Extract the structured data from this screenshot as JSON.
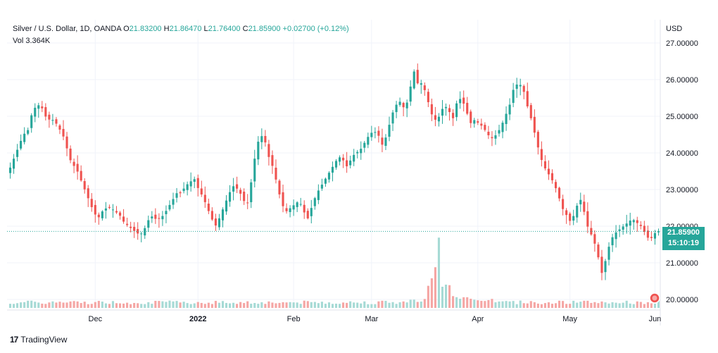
{
  "header": {
    "symbol": "Silver / U.S. Dollar, 1D, OANDA",
    "open_label": "O",
    "open_value": "21.83200",
    "high_label": "H",
    "high_value": "21.86470",
    "low_label": "L",
    "low_value": "21.76400",
    "close_label": "C",
    "close_value": "21.85900",
    "change": "+0.02700 (+0.12%)",
    "vol_label": "Vol",
    "vol_value": "3.364K"
  },
  "currency": "USD",
  "last_price": {
    "price": "21.85900",
    "countdown": "15:10:19"
  },
  "brand": {
    "logo": "17",
    "name": "TradingView"
  },
  "colors": {
    "up": "#26a69a",
    "down": "#ef5350",
    "up_vol": "#a6dad5",
    "down_vol": "#f5a6a4",
    "grid": "#f0f3fa",
    "axis_text": "#131722"
  },
  "chart_data": {
    "type": "candlestick",
    "title": "Silver / U.S. Dollar, 1D, OANDA",
    "ylabel": "USD",
    "ylim": [
      19.9,
      27.2
    ],
    "y_ticks": [
      "27.00000",
      "26.00000",
      "25.00000",
      "24.00000",
      "23.00000",
      "22.00000",
      "21.00000",
      "20.00000"
    ],
    "x_ticks": [
      "Dec",
      "2022",
      "Feb",
      "Mar",
      "Apr",
      "May",
      "Jun"
    ],
    "x_tick_index": [
      24,
      53,
      80,
      102,
      132,
      158,
      182
    ],
    "bars": 184,
    "close_series_approx": [
      23.6,
      23.9,
      24.2,
      24.5,
      24.6,
      25.1,
      25.3,
      25.3,
      25.0,
      24.9,
      24.9,
      24.7,
      24.5,
      24.1,
      23.7,
      23.6,
      23.3,
      23.0,
      22.7,
      22.4,
      22.2,
      22.4,
      22.5,
      22.5,
      22.4,
      22.3,
      22.1,
      22.0,
      21.9,
      21.8,
      21.8,
      22.0,
      22.3,
      22.2,
      22.2,
      22.3,
      22.5,
      22.7,
      22.9,
      22.9,
      23.1,
      23.2,
      23.3,
      23.0,
      22.8,
      22.5,
      22.2,
      22.0,
      22.3,
      22.6,
      22.9,
      23.1,
      23.0,
      22.8,
      22.5,
      23.2,
      24.0,
      24.5,
      24.4,
      23.9,
      23.6,
      23.1,
      22.6,
      22.4,
      22.5,
      22.6,
      22.7,
      22.4,
      22.2,
      22.6,
      22.9,
      23.1,
      23.3,
      23.5,
      23.7,
      23.9,
      23.8,
      23.6,
      23.9,
      24.0,
      24.1,
      24.3,
      24.5,
      24.6,
      24.5,
      24.2,
      24.5,
      25.0,
      25.3,
      25.4,
      25.2,
      25.5,
      26.3,
      25.9,
      25.9,
      25.6,
      25.1,
      24.9,
      25.0,
      25.3,
      25.2,
      24.9,
      25.4,
      25.5,
      25.2,
      24.8,
      24.9,
      24.8,
      24.7,
      24.5,
      24.4,
      24.5,
      24.7,
      25.0,
      25.3,
      25.8,
      25.9,
      25.8,
      25.3,
      24.9,
      24.4,
      23.9,
      23.6,
      23.4,
      23.2,
      22.9,
      22.5,
      22.3,
      22.1,
      22.4,
      22.8,
      22.4,
      21.9,
      21.7,
      21.3,
      20.7,
      21.1,
      21.6,
      21.8,
      21.9,
      22.0,
      22.1,
      22.2,
      22.1,
      22.0,
      21.8,
      21.6,
      21.8,
      21.859
    ],
    "volume_max_value_approx": 1.0,
    "last_price": 21.859,
    "countdown": "15:10:19"
  }
}
